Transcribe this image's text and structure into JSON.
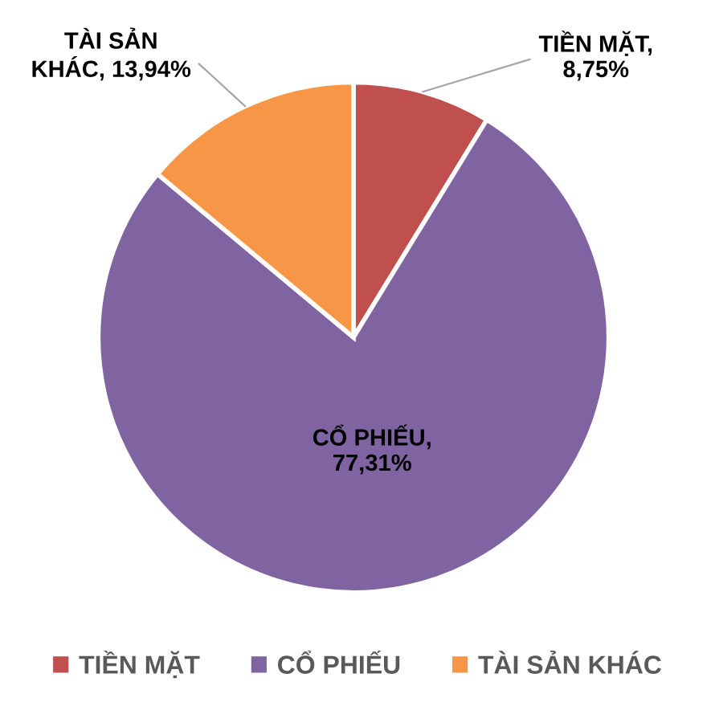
{
  "chart_data": {
    "type": "pie",
    "categories": [
      "TIỀN MẶT",
      "CỔ PHIẾU",
      "TÀI SẢN KHÁC"
    ],
    "values": [
      8.75,
      77.31,
      13.94
    ],
    "colors": [
      "#c0504d",
      "#8064a2",
      "#f79646"
    ],
    "value_labels": [
      "TIỀN MẶT, 8,75%",
      "CỔ PHIẾU, 77,31%",
      "TÀI SẢN KHÁC, 13,94%"
    ],
    "legend": "bottom"
  }
}
